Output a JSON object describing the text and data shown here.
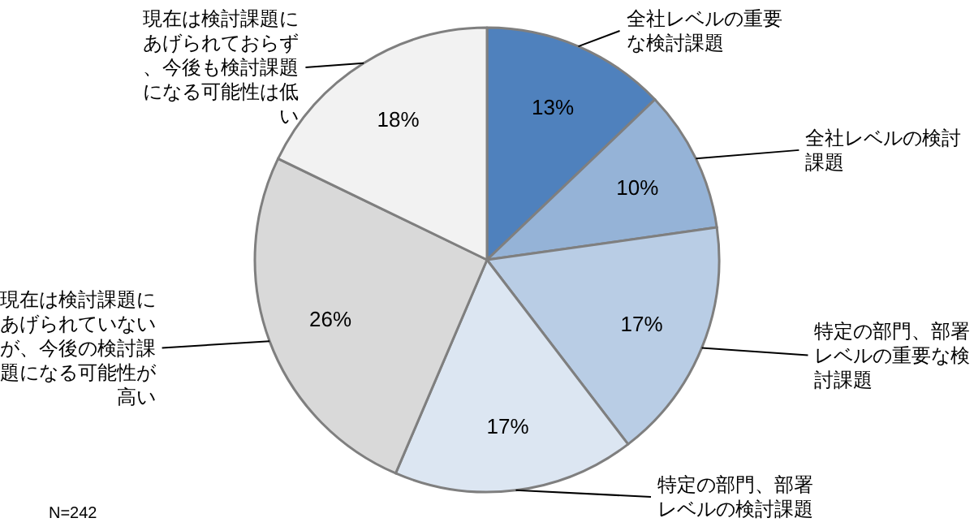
{
  "chart_data": {
    "type": "pie",
    "categories": [
      "全社レベルの重要な検討課題",
      "全社レベルの検討課題",
      "特定の部門、部署レベルの重要な検討課題",
      "特定の部門、部署レベルの検討課題",
      "現在は検討課題にあげられていないが、今後の検討課題になる可能性が高い",
      "現在は検討課題にあげられておらず、今後も検討課題になる可能性は低い"
    ],
    "values": [
      13,
      10,
      17,
      17,
      26,
      18
    ],
    "colors": [
      "#4f81bd",
      "#95b3d7",
      "#b9cde5",
      "#dce6f2",
      "#d9d9d9",
      "#f2f2f2"
    ],
    "value_labels": [
      "13%",
      "10%",
      "17%",
      "17%",
      "26%",
      "18%"
    ],
    "annotations": [
      "N=242"
    ]
  }
}
